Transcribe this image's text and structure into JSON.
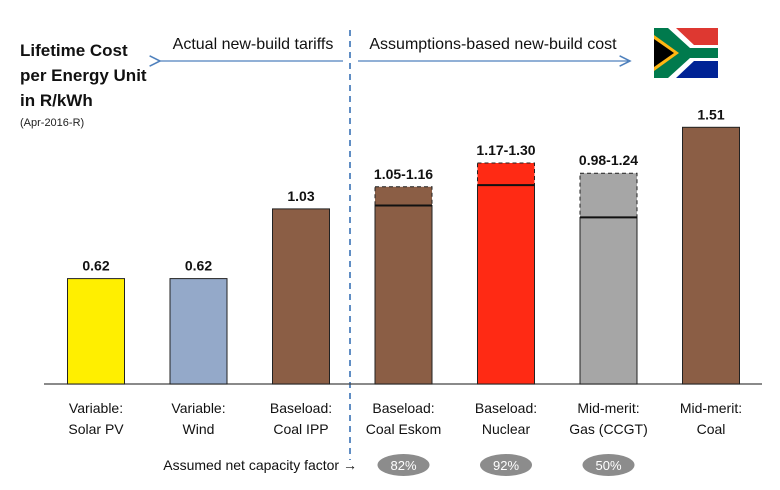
{
  "title": {
    "line1": "Lifetime Cost",
    "line2": "per Energy Unit",
    "line3": "in R/kWh",
    "sub": "(Apr-2016-R)"
  },
  "header": {
    "left": "Actual new-build tariffs",
    "right": "Assumptions-based new-build cost"
  },
  "footer": {
    "label": "Assumed net capacity factor",
    "arrow": "→"
  },
  "flag": "south-africa-flag",
  "chart_data": {
    "type": "bar",
    "ylim": [
      0,
      1.7
    ],
    "grid": false,
    "categories": [
      [
        "Variable:",
        "Solar PV"
      ],
      [
        "Variable:",
        "Wind"
      ],
      [
        "Baseload:",
        "Coal IPP"
      ],
      [
        "Baseload:",
        "Coal Eskom"
      ],
      [
        "Baseload:",
        "Nuclear"
      ],
      [
        "Mid-merit:",
        "Gas (CCGT)"
      ],
      [
        "Mid-merit:",
        "Coal"
      ]
    ],
    "bars": [
      {
        "low": 0.62,
        "high": 0.62,
        "label": "0.62",
        "color": "#ffef00"
      },
      {
        "low": 0.62,
        "high": 0.62,
        "label": "0.62",
        "color": "#94a9c9"
      },
      {
        "low": 1.03,
        "high": 1.03,
        "label": "1.03",
        "color": "#8b5e45"
      },
      {
        "low": 1.05,
        "high": 1.16,
        "label": "1.05-1.16",
        "color": "#8b5e45"
      },
      {
        "low": 1.17,
        "high": 1.3,
        "label": "1.17-1.30",
        "color": "#ff2a14"
      },
      {
        "low": 0.98,
        "high": 1.24,
        "label": "0.98-1.24",
        "color": "#a6a6a6"
      },
      {
        "low": 1.51,
        "high": 1.51,
        "label": "1.51",
        "color": "#8b5e45"
      }
    ],
    "capacity_factors": [
      {
        "index": 3,
        "label": "82%"
      },
      {
        "index": 4,
        "label": "92%"
      },
      {
        "index": 5,
        "label": "50%"
      }
    ]
  }
}
